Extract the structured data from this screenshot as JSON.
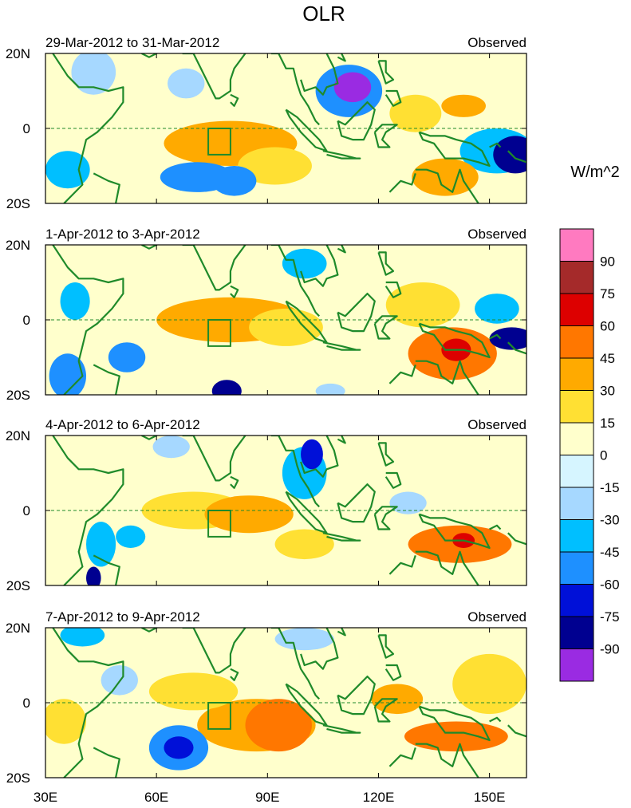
{
  "figure": {
    "title": "OLR",
    "units_label": "W/m^2",
    "lat_ticks": [
      "20N",
      "0",
      "20S"
    ],
    "lon_ticks": [
      "30E",
      "60E",
      "90E",
      "120E",
      "150E"
    ],
    "lon_values": [
      30,
      60,
      90,
      120,
      150
    ],
    "lon_range": [
      30,
      160
    ],
    "lat_range": [
      -20,
      20
    ],
    "box_region": {
      "lon": [
        74,
        80
      ],
      "lat": [
        -7,
        0
      ]
    },
    "panels": [
      {
        "date_range": "29-Mar-2012 to 31-Mar-2012",
        "label": "Observed"
      },
      {
        "date_range": "1-Apr-2012 to 3-Apr-2012",
        "label": "Observed"
      },
      {
        "date_range": "4-Apr-2012 to 6-Apr-2012",
        "label": "Observed"
      },
      {
        "date_range": "7-Apr-2012 to 9-Apr-2012",
        "label": "Observed"
      }
    ]
  },
  "colorbar": {
    "labels": [
      "90",
      "75",
      "60",
      "45",
      "30",
      "15",
      "0",
      "-15",
      "-30",
      "-45",
      "-60",
      "-75",
      "-90"
    ],
    "colors": [
      "#ff7ac0",
      "#a52a2a",
      "#dd0000",
      "#ff7700",
      "#ffaa00",
      "#ffe033",
      "#ffffcc",
      "#d6f5ff",
      "#a6d8ff",
      "#00bfff",
      "#1e90ff",
      "#0010d8",
      "#000090",
      "#9a2be2"
    ]
  },
  "anomaly_features": [
    [
      {
        "lon": 113,
        "lat": 11,
        "value": -95,
        "rx": 5,
        "ry": 4
      },
      {
        "lon": 112,
        "lat": 10,
        "value": -55,
        "rx": 9,
        "ry": 7
      },
      {
        "lon": 157,
        "lat": -7,
        "value": -80,
        "rx": 6,
        "ry": 5
      },
      {
        "lon": 152,
        "lat": -6,
        "value": -45,
        "rx": 10,
        "ry": 6
      },
      {
        "lon": 71,
        "lat": -13,
        "value": -60,
        "rx": 10,
        "ry": 4
      },
      {
        "lon": 81,
        "lat": -14,
        "value": -50,
        "rx": 6,
        "ry": 4
      },
      {
        "lon": 36,
        "lat": -11,
        "value": -45,
        "rx": 6,
        "ry": 5
      },
      {
        "lon": 43,
        "lat": 15,
        "value": -30,
        "rx": 6,
        "ry": 6
      },
      {
        "lon": 68,
        "lat": 12,
        "value": -25,
        "rx": 5,
        "ry": 4
      },
      {
        "lon": 80,
        "lat": -4,
        "value": 40,
        "rx": 18,
        "ry": 6
      },
      {
        "lon": 92,
        "lat": -10,
        "value": 25,
        "rx": 10,
        "ry": 5
      },
      {
        "lon": 138,
        "lat": -13,
        "value": 40,
        "rx": 9,
        "ry": 5
      },
      {
        "lon": 130,
        "lat": 4,
        "value": 25,
        "rx": 7,
        "ry": 5
      },
      {
        "lon": 143,
        "lat": 6,
        "value": 30,
        "rx": 6,
        "ry": 3
      }
    ],
    [
      {
        "lon": 141,
        "lat": -8,
        "value": 65,
        "rx": 4,
        "ry": 3
      },
      {
        "lon": 140,
        "lat": -9,
        "value": 45,
        "rx": 12,
        "ry": 7
      },
      {
        "lon": 132,
        "lat": 4,
        "value": 25,
        "rx": 10,
        "ry": 6
      },
      {
        "lon": 80,
        "lat": 0,
        "value": 30,
        "rx": 20,
        "ry": 6
      },
      {
        "lon": 95,
        "lat": -2,
        "value": 20,
        "rx": 10,
        "ry": 5
      },
      {
        "lon": 156,
        "lat": -5,
        "value": -80,
        "rx": 6,
        "ry": 3
      },
      {
        "lon": 152,
        "lat": 3,
        "value": -35,
        "rx": 6,
        "ry": 4
      },
      {
        "lon": 79,
        "lat": -19,
        "value": -80,
        "rx": 4,
        "ry": 3
      },
      {
        "lon": 52,
        "lat": -10,
        "value": -60,
        "rx": 5,
        "ry": 4
      },
      {
        "lon": 36,
        "lat": -15,
        "value": -60,
        "rx": 5,
        "ry": 6
      },
      {
        "lon": 38,
        "lat": 5,
        "value": -45,
        "rx": 4,
        "ry": 5
      },
      {
        "lon": 100,
        "lat": 15,
        "value": -35,
        "rx": 6,
        "ry": 4
      },
      {
        "lon": 107,
        "lat": -19,
        "value": -25,
        "rx": 4,
        "ry": 2
      }
    ],
    [
      {
        "lon": 143,
        "lat": -8,
        "value": 65,
        "rx": 3,
        "ry": 2
      },
      {
        "lon": 142,
        "lat": -9,
        "value": 45,
        "rx": 14,
        "ry": 5
      },
      {
        "lon": 85,
        "lat": -1,
        "value": 40,
        "rx": 12,
        "ry": 5
      },
      {
        "lon": 70,
        "lat": 0,
        "value": 25,
        "rx": 14,
        "ry": 5
      },
      {
        "lon": 100,
        "lat": -9,
        "value": 20,
        "rx": 8,
        "ry": 4
      },
      {
        "lon": 102,
        "lat": 15,
        "value": -65,
        "rx": 3,
        "ry": 4
      },
      {
        "lon": 100,
        "lat": 10,
        "value": -35,
        "rx": 6,
        "ry": 7
      },
      {
        "lon": 43,
        "lat": -18,
        "value": -80,
        "rx": 2,
        "ry": 3
      },
      {
        "lon": 45,
        "lat": -9,
        "value": -45,
        "rx": 4,
        "ry": 6
      },
      {
        "lon": 53,
        "lat": -7,
        "value": -35,
        "rx": 4,
        "ry": 3
      },
      {
        "lon": 64,
        "lat": 17,
        "value": -30,
        "rx": 5,
        "ry": 3
      },
      {
        "lon": 128,
        "lat": 2,
        "value": -30,
        "rx": 5,
        "ry": 3
      }
    ],
    [
      {
        "lon": 66,
        "lat": -12,
        "value": -75,
        "rx": 4,
        "ry": 3
      },
      {
        "lon": 66,
        "lat": -12,
        "value": -50,
        "rx": 8,
        "ry": 6
      },
      {
        "lon": 40,
        "lat": 18,
        "value": -40,
        "rx": 6,
        "ry": 3
      },
      {
        "lon": 100,
        "lat": 17,
        "value": -30,
        "rx": 8,
        "ry": 3
      },
      {
        "lon": 50,
        "lat": 6,
        "value": -25,
        "rx": 5,
        "ry": 4
      },
      {
        "lon": 93,
        "lat": -6,
        "value": 45,
        "rx": 9,
        "ry": 7
      },
      {
        "lon": 87,
        "lat": -6,
        "value": 30,
        "rx": 16,
        "ry": 7
      },
      {
        "lon": 125,
        "lat": 1,
        "value": 40,
        "rx": 7,
        "ry": 4
      },
      {
        "lon": 141,
        "lat": -9,
        "value": 45,
        "rx": 14,
        "ry": 4
      },
      {
        "lon": 150,
        "lat": 5,
        "value": 25,
        "rx": 10,
        "ry": 8
      },
      {
        "lon": 70,
        "lat": 3,
        "value": 20,
        "rx": 12,
        "ry": 5
      },
      {
        "lon": 35,
        "lat": -5,
        "value": 15,
        "rx": 6,
        "ry": 6
      }
    ]
  ],
  "coastlines": [
    [
      [
        32,
        20
      ],
      [
        36,
        14
      ],
      [
        39,
        11
      ],
      [
        43,
        11
      ],
      [
        47,
        10
      ],
      [
        51,
        11
      ],
      [
        51,
        7
      ],
      [
        48,
        3
      ],
      [
        44,
        -1
      ],
      [
        41,
        -3
      ],
      [
        40,
        -7
      ],
      [
        39,
        -11
      ],
      [
        40,
        -15
      ],
      [
        35,
        -20
      ]
    ],
    [
      [
        43,
        -12
      ],
      [
        47,
        -14
      ],
      [
        50,
        -15
      ],
      [
        49,
        -20
      ]
    ],
    [
      [
        56,
        20
      ],
      [
        58,
        19
      ],
      [
        62,
        21
      ]
    ],
    [
      [
        67,
        20
      ],
      [
        70,
        20
      ],
      [
        72,
        16
      ],
      [
        74,
        12
      ],
      [
        76,
        8
      ],
      [
        77,
        8
      ],
      [
        80,
        10
      ],
      [
        80,
        13
      ],
      [
        81,
        16
      ],
      [
        84,
        20
      ]
    ],
    [
      [
        80,
        9
      ],
      [
        82,
        8
      ],
      [
        81,
        6
      ],
      [
        80,
        7
      ]
    ],
    [
      [
        91,
        20
      ],
      [
        93,
        20
      ],
      [
        95,
        16
      ],
      [
        97,
        16
      ],
      [
        98,
        12
      ],
      [
        99,
        9
      ],
      [
        101,
        6
      ],
      [
        103,
        2
      ],
      [
        104,
        1
      ]
    ],
    [
      [
        99,
        13
      ],
      [
        100,
        10
      ],
      [
        103,
        11
      ],
      [
        105,
        9
      ],
      [
        106,
        11
      ],
      [
        109,
        12
      ],
      [
        108,
        16
      ],
      [
        106,
        20
      ]
    ],
    [
      [
        110,
        20
      ],
      [
        111,
        18
      ],
      [
        109,
        19
      ]
    ],
    [
      [
        120,
        18
      ],
      [
        122,
        18
      ],
      [
        122,
        15
      ],
      [
        124,
        13
      ],
      [
        122,
        12
      ],
      [
        121,
        15
      ],
      [
        120,
        18
      ]
    ],
    [
      [
        122,
        10
      ],
      [
        125,
        10
      ],
      [
        126,
        7
      ],
      [
        124,
        6
      ],
      [
        122,
        9
      ]
    ],
    [
      [
        95,
        5
      ],
      [
        98,
        3
      ],
      [
        101,
        0
      ],
      [
        104,
        -3
      ],
      [
        106,
        -6
      ],
      [
        103,
        -5
      ],
      [
        99,
        -1
      ],
      [
        96,
        3
      ],
      [
        95,
        5
      ]
    ],
    [
      [
        105,
        -6
      ],
      [
        110,
        -7
      ],
      [
        114,
        -8
      ],
      [
        115,
        -8
      ],
      [
        110,
        -8
      ],
      [
        106,
        -7
      ]
    ],
    [
      [
        109,
        2
      ],
      [
        111,
        1
      ],
      [
        114,
        4
      ],
      [
        117,
        7
      ],
      [
        119,
        5
      ],
      [
        118,
        1
      ],
      [
        116,
        -3
      ],
      [
        113,
        -3
      ],
      [
        110,
        -2
      ],
      [
        109,
        2
      ]
    ],
    [
      [
        119,
        -1
      ],
      [
        121,
        1
      ],
      [
        125,
        1
      ],
      [
        122,
        -1
      ],
      [
        121,
        -3
      ],
      [
        123,
        -5
      ],
      [
        120,
        -5
      ],
      [
        119,
        -1
      ]
    ],
    [
      [
        131,
        -1
      ],
      [
        134,
        -2
      ],
      [
        138,
        -2
      ],
      [
        141,
        -3
      ],
      [
        145,
        -4
      ],
      [
        148,
        -6
      ],
      [
        150,
        -10
      ],
      [
        147,
        -9
      ],
      [
        143,
        -8
      ],
      [
        138,
        -8
      ],
      [
        135,
        -4
      ],
      [
        132,
        -3
      ],
      [
        131,
        -1
      ]
    ],
    [
      [
        130,
        -11
      ],
      [
        133,
        -11
      ],
      [
        136,
        -12
      ],
      [
        137,
        -15
      ],
      [
        140,
        -17
      ],
      [
        142,
        -11
      ],
      [
        143,
        -14
      ],
      [
        145,
        -17
      ],
      [
        147,
        -20
      ]
    ],
    [
      [
        123,
        -17
      ],
      [
        126,
        -14
      ],
      [
        129,
        -15
      ],
      [
        130,
        -12
      ]
    ],
    [
      [
        150,
        -5
      ],
      [
        152,
        -4
      ],
      [
        153,
        -5
      ]
    ],
    [
      [
        155,
        -6
      ],
      [
        157,
        -8
      ],
      [
        160,
        -9
      ]
    ]
  ]
}
